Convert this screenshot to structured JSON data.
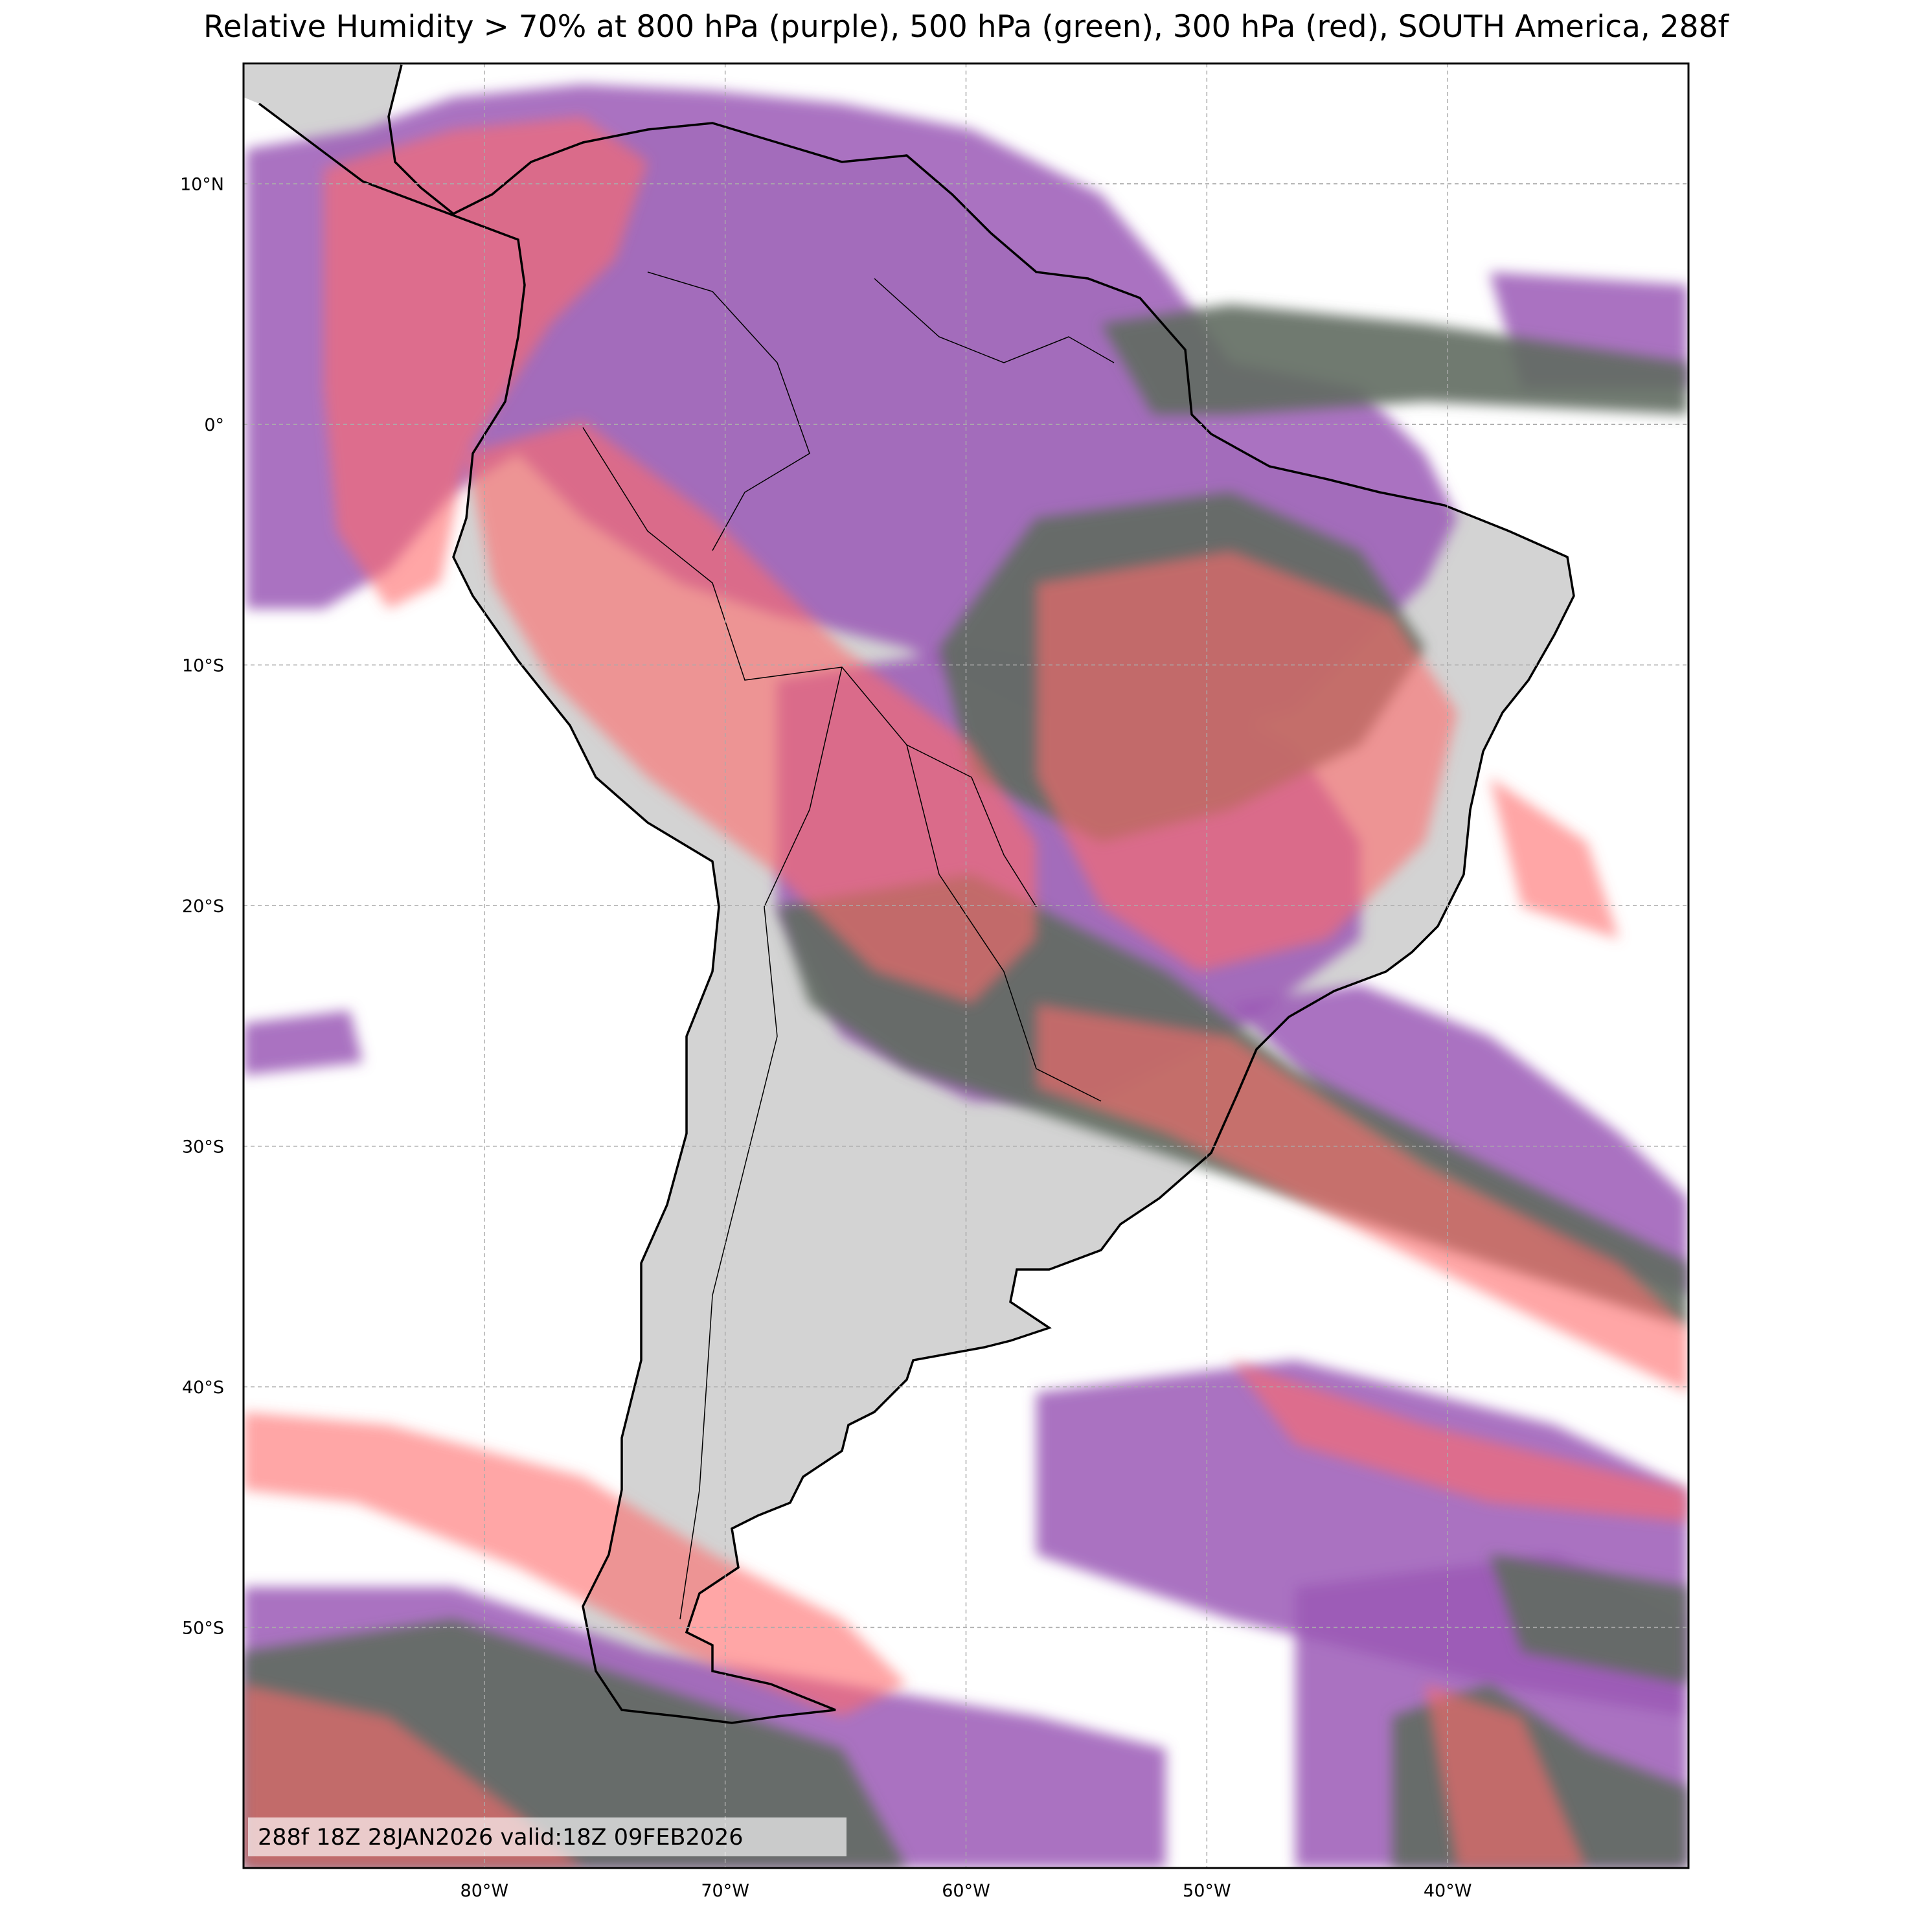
{
  "title": "Relative Humidity > 70% at 800 hPa (purple), 500 hPa (green), 300 hPa (red), SOUTH America, 288f",
  "info_box": "288f 18Z 28JAN2026 valid:18Z 09FEB2026",
  "map": {
    "region": "SOUTH America",
    "projection": "PlateCarree",
    "lon_range": [
      -90,
      -30
    ],
    "lat_range": [
      -60,
      15
    ],
    "lon_ticks": [
      {
        "value": -80,
        "label": "80°W"
      },
      {
        "value": -70,
        "label": "70°W"
      },
      {
        "value": -60,
        "label": "60°W"
      },
      {
        "value": -50,
        "label": "50°W"
      },
      {
        "value": -40,
        "label": "40°W"
      }
    ],
    "lat_ticks": [
      {
        "value": 10,
        "label": "10°N"
      },
      {
        "value": 0,
        "label": "0°"
      },
      {
        "value": -10,
        "label": "10°S"
      },
      {
        "value": -20,
        "label": "20°S"
      },
      {
        "value": -30,
        "label": "30°S"
      },
      {
        "value": -40,
        "label": "40°S"
      },
      {
        "value": -50,
        "label": "50°S"
      }
    ],
    "gridlines": true,
    "colors": {
      "land": "#d3d3d3",
      "ocean": "#ffffff",
      "rh_800hPa": "#9b59b6",
      "rh_500hPa": "#6abf69",
      "rh_300hPa": "#ff6b6b",
      "coastline": "#000000"
    }
  }
}
